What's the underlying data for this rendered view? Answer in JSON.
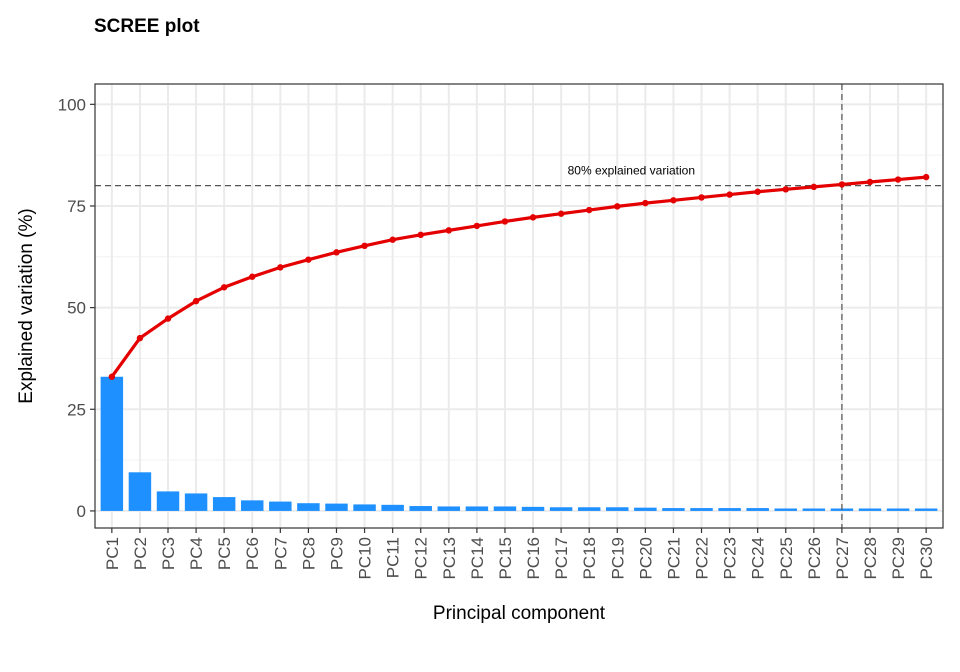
{
  "chart_data": {
    "type": "bar",
    "title": "SCREE plot",
    "xlabel": "Principal component",
    "ylabel": "Explained variation (%)",
    "ylim": [
      -4.2,
      105
    ],
    "yticks": [
      0,
      25,
      50,
      75,
      100
    ],
    "grid": true,
    "categories": [
      "PC1",
      "PC2",
      "PC3",
      "PC4",
      "PC5",
      "PC6",
      "PC7",
      "PC8",
      "PC9",
      "PC10",
      "PC11",
      "PC12",
      "PC13",
      "PC14",
      "PC15",
      "PC16",
      "PC17",
      "PC18",
      "PC19",
      "PC20",
      "PC21",
      "PC22",
      "PC23",
      "PC24",
      "PC25",
      "PC26",
      "PC27",
      "PC28",
      "PC29",
      "PC30"
    ],
    "series": [
      {
        "type": "bar",
        "color": "#1E90FF",
        "values": [
          33.0,
          9.5,
          4.8,
          4.3,
          3.4,
          2.6,
          2.3,
          1.9,
          1.8,
          1.6,
          1.5,
          1.2,
          1.1,
          1.1,
          1.1,
          1.0,
          0.9,
          0.9,
          0.9,
          0.8,
          0.7,
          0.7,
          0.7,
          0.7,
          0.6,
          0.6,
          0.6,
          0.6,
          0.6,
          0.6
        ]
      },
      {
        "type": "line",
        "color": "#E50000",
        "values": [
          33.0,
          42.5,
          47.3,
          51.6,
          55.0,
          57.6,
          59.9,
          61.8,
          63.6,
          65.2,
          66.7,
          67.9,
          69.0,
          70.1,
          71.2,
          72.2,
          73.1,
          74.0,
          74.9,
          75.7,
          76.4,
          77.1,
          77.8,
          78.5,
          79.1,
          79.7,
          80.3,
          80.9,
          81.5,
          82.1
        ]
      }
    ],
    "hline": {
      "y": 80,
      "label": "80% explained variation"
    },
    "vline": {
      "x": "PC27"
    }
  }
}
